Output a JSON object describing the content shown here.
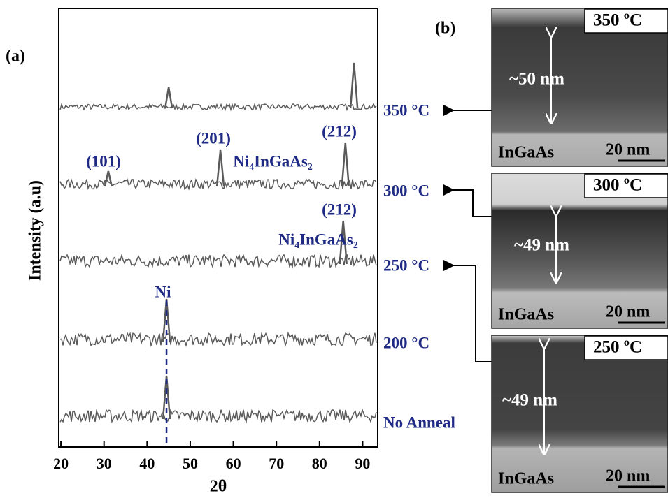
{
  "panel_a": "(a)",
  "panel_b": "(b)",
  "chart_data": {
    "type": "line",
    "xlabel": "2θ",
    "ylabel": "Intensity (a.u)",
    "xlim": [
      19.5,
      93.5
    ],
    "xticks": [
      20,
      30,
      40,
      50,
      60,
      70,
      80,
      90
    ],
    "color": "#5a5a5a",
    "label_color": "#1f2a85",
    "series": [
      {
        "name": "350 °C",
        "peaks": [
          {
            "x": 45,
            "height": 30
          },
          {
            "x": 88,
            "height": 65
          }
        ]
      },
      {
        "name": "300 °C",
        "peaks": [
          {
            "x": 31,
            "height": 22
          },
          {
            "x": 57,
            "height": 52
          },
          {
            "x": 86,
            "height": 62
          }
        ]
      },
      {
        "name": "250 °C",
        "peaks": [
          {
            "x": 85.5,
            "height": 62
          }
        ]
      },
      {
        "name": "200 °C",
        "peaks": [
          {
            "x": 44.5,
            "height": 62
          }
        ]
      },
      {
        "name": "No Anneal",
        "peaks": [
          {
            "x": 44.5,
            "height": 62
          }
        ]
      }
    ],
    "annotations": [
      "(101)",
      "(201)",
      "(212)",
      "Ni₄InGaAs₂",
      "(212)",
      "Ni₄InGaAs₂",
      "Ni"
    ]
  },
  "tem_images": [
    {
      "temperature": "350 ºC",
      "thickness": "~50 nm",
      "substrate": "InGaAs",
      "scale": "20 nm"
    },
    {
      "temperature": "300 ºC",
      "thickness": "~49 nm",
      "substrate": "InGaAs",
      "scale": "20 nm"
    },
    {
      "temperature": "250 ºC",
      "thickness": "~49 nm",
      "substrate": "InGaAs",
      "scale": "20 nm"
    }
  ]
}
